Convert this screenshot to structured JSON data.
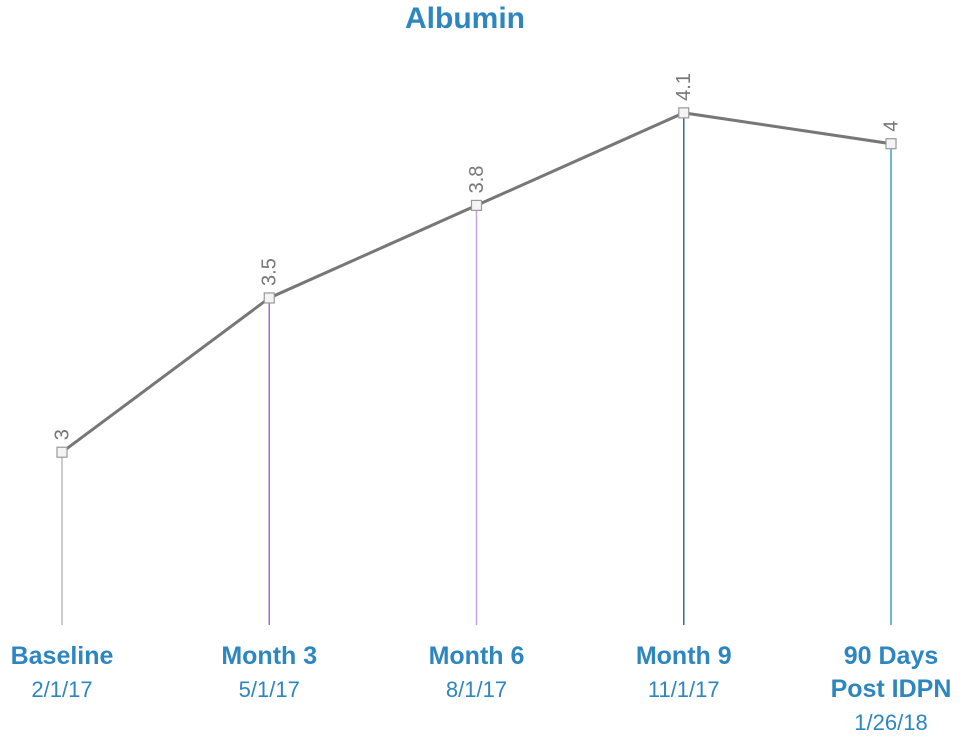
{
  "chart_data": {
    "type": "line",
    "title": "Albumin",
    "categories": [
      "Baseline",
      "Month 3",
      "Month 6",
      "Month 9",
      "90 Days Post IDPN"
    ],
    "dates": [
      "2/1/17",
      "5/1/17",
      "8/1/17",
      "11/1/17",
      "1/26/18"
    ],
    "values": [
      3,
      3.5,
      3.8,
      4.1,
      4
    ],
    "color": "#777777",
    "drop_line_colors": [
      "#bbbbbb",
      "#a66fc2",
      "#c9a2da",
      "#2f6ea8",
      "#3a9fd2"
    ],
    "label_color": "#2e86c1",
    "ylim": [
      2.44,
      4.2
    ]
  }
}
